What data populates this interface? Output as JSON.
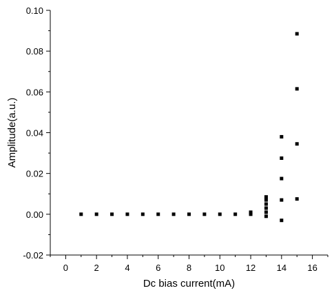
{
  "chart_data": {
    "type": "scatter",
    "xlabel": "Dc bias current(mA)",
    "ylabel": "Amplitude(a.u.)",
    "xlim": [
      -1,
      17
    ],
    "ylim": [
      -0.02,
      0.1
    ],
    "x_ticks": [
      0,
      2,
      4,
      6,
      8,
      10,
      12,
      14,
      16
    ],
    "y_ticks": [
      -0.02,
      0.0,
      0.02,
      0.04,
      0.06,
      0.08,
      0.1
    ],
    "x_tick_labels": [
      "0",
      "2",
      "4",
      "6",
      "8",
      "10",
      "12",
      "14",
      "16"
    ],
    "y_tick_labels": [
      "-0.02",
      "0.00",
      "0.02",
      "0.04",
      "0.06",
      "0.08",
      "0.10"
    ],
    "grid": false,
    "marker": "square",
    "marker_color": "#000000",
    "series": [
      {
        "points": [
          [
            1,
            0.0
          ],
          [
            2,
            0.0
          ],
          [
            3,
            0.0
          ],
          [
            4,
            0.0
          ],
          [
            5,
            0.0
          ],
          [
            6,
            0.0
          ],
          [
            7,
            0.0
          ],
          [
            8,
            0.0
          ],
          [
            9,
            0.0
          ],
          [
            10,
            0.0
          ],
          [
            11,
            0.0
          ],
          [
            12,
            0.0
          ],
          [
            12,
            0.001
          ],
          [
            13,
            -0.001
          ],
          [
            13,
            0.001
          ],
          [
            13,
            0.003
          ],
          [
            13,
            0.005
          ],
          [
            13,
            0.007
          ],
          [
            13,
            0.0085
          ],
          [
            14,
            -0.003
          ],
          [
            14,
            0.007
          ],
          [
            14,
            0.0175
          ],
          [
            14,
            0.0275
          ],
          [
            14,
            0.038
          ],
          [
            15,
            0.0075
          ],
          [
            15,
            0.0345
          ],
          [
            15,
            0.0615
          ],
          [
            15,
            0.0885
          ]
        ]
      }
    ]
  }
}
